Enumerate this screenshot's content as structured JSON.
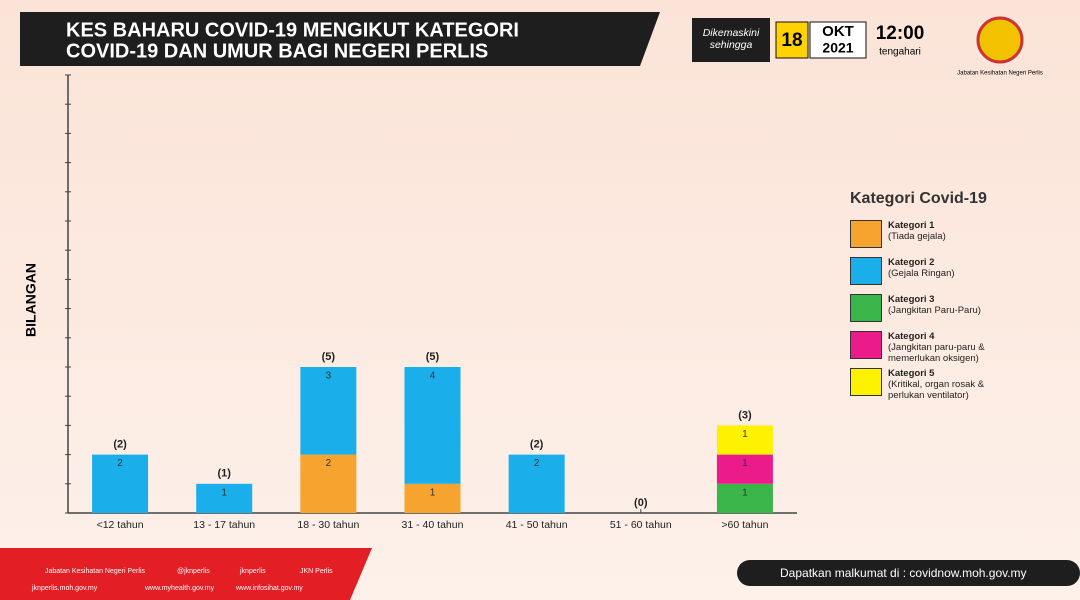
{
  "header": {
    "title_lines": [
      "KES BAHARU COVID-19 MENGIKUT KATEGORI",
      "COVID-19 DAN UMUR BAGI NEGERI PERLIS"
    ],
    "updated_label": "Dikemaskini sehingga",
    "day": "18",
    "month": "OKT",
    "year": "2021",
    "time": "12:00",
    "time_note": "tengahari",
    "logo_caption": "Jabatan Kesihatan Negeri Perlis"
  },
  "chart_data": {
    "type": "stacked-bar",
    "y_label": "BILANGAN",
    "categories": [
      "<12 tahun",
      "13 - 17 tahun",
      "18 - 30 tahun",
      "31 - 40 tahun",
      "41 - 50 tahun",
      "51 - 60 tahun",
      ">60 tahun"
    ],
    "series": [
      {
        "name": "Kategori 1",
        "description": "(Tiada gejala)",
        "color": "#f7a330",
        "values": [
          0,
          0,
          2,
          1,
          0,
          0,
          0
        ]
      },
      {
        "name": "Kategori 2",
        "description": "(Gejala Ringan)",
        "color": "#1aaeeb",
        "values": [
          2,
          1,
          3,
          4,
          2,
          0,
          0
        ]
      },
      {
        "name": "Kategori 3",
        "description": "(Jangkitan Paru-Paru)",
        "color": "#3ab54a",
        "values": [
          0,
          0,
          0,
          0,
          0,
          0,
          1
        ]
      },
      {
        "name": "Kategori 4",
        "description": "(Jangkitan paru-paru & memerlukan oksigen)",
        "color": "#ec1b8c",
        "values": [
          0,
          0,
          0,
          0,
          0,
          0,
          1
        ]
      },
      {
        "name": "Kategori 5",
        "description": "(Kritikal, organ rosak & perlukan ventilator)",
        "color": "#fff200",
        "values": [
          0,
          0,
          0,
          0,
          0,
          0,
          1
        ]
      }
    ],
    "totals": {
      "values": [
        2,
        1,
        5,
        5,
        2,
        0,
        3
      ],
      "value_labels": [
        "(2)",
        "(1)",
        "(5)",
        "(5)",
        "(2)",
        "(0)",
        "(3)"
      ]
    },
    "legend_title": "Kategori Covid-19",
    "ylim": [
      0,
      15
    ],
    "yticks": [
      0,
      1,
      2,
      3,
      4,
      5,
      6,
      7,
      8,
      9,
      10,
      11,
      12,
      13,
      14,
      15
    ]
  },
  "footer": {
    "social": [
      "Jabatan Kesihatan Negeri Perlis",
      "@jknperlis",
      "jknperlis",
      "JKN Perlis"
    ],
    "websites": [
      "jknperlis.moh.gov.my",
      "www.myhealth.gov.my",
      "www.infosihat.gov.my"
    ],
    "source": "Dapatkan malkumat di : covidnow.moh.gov.my"
  }
}
